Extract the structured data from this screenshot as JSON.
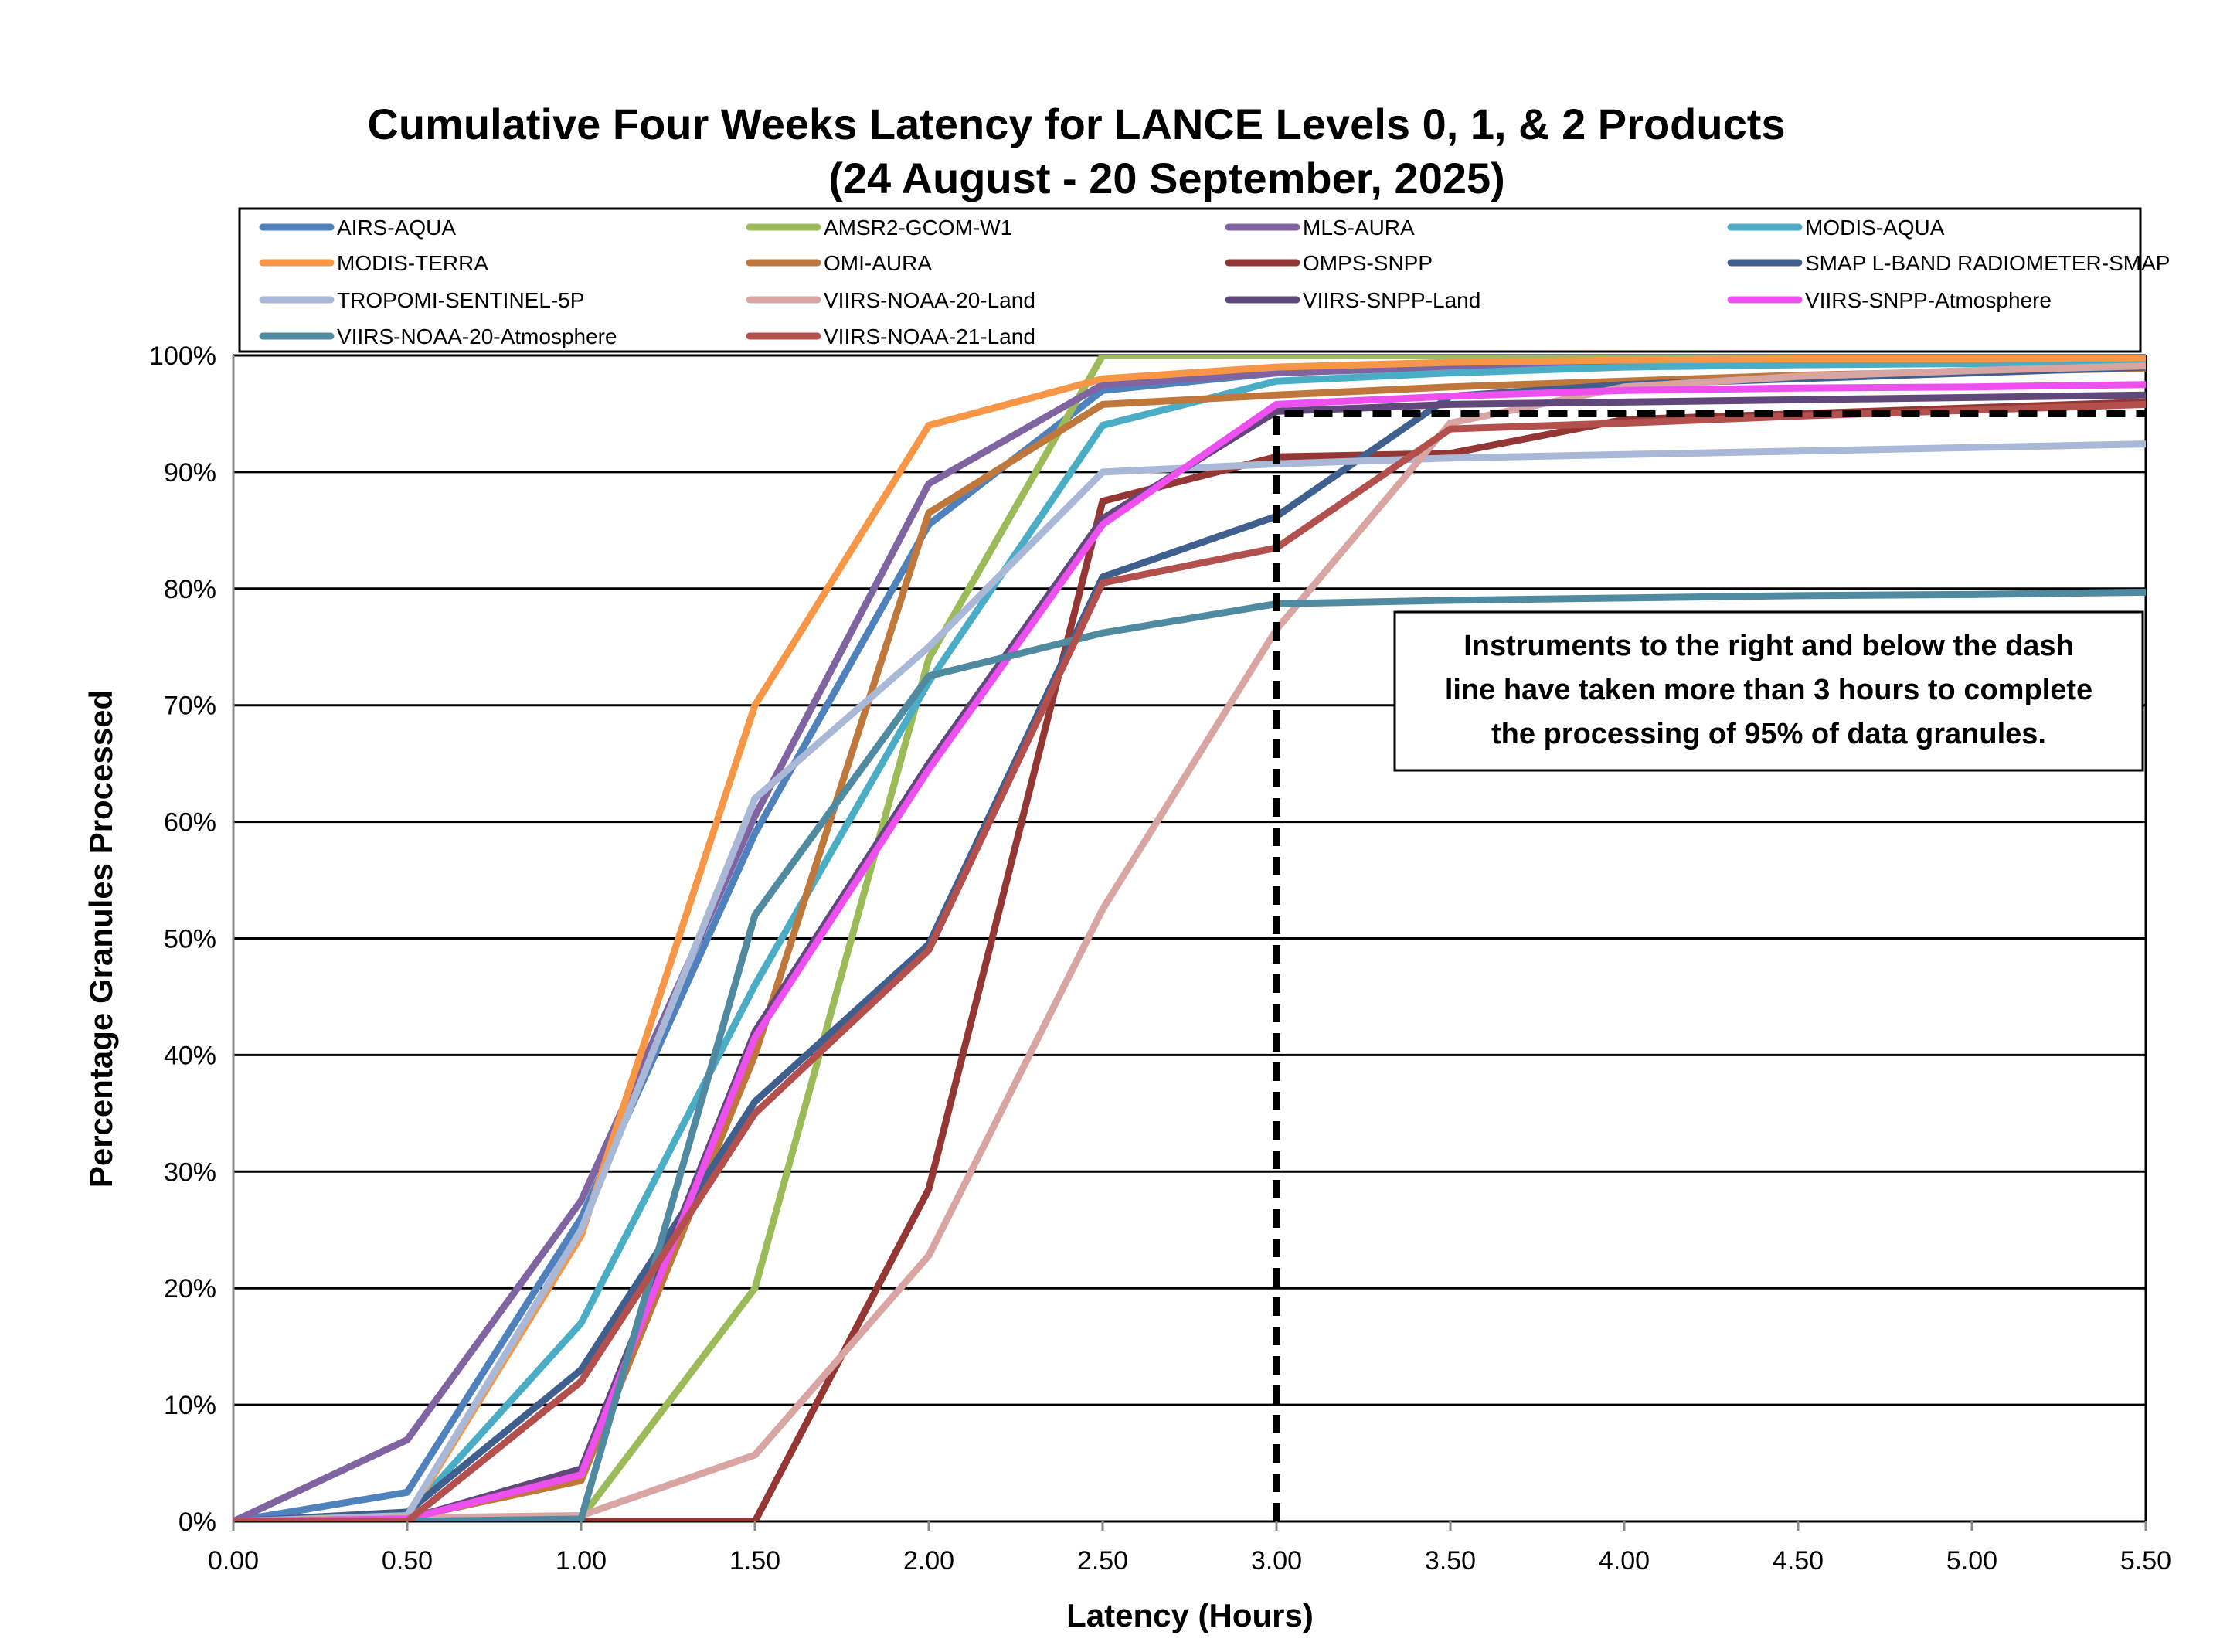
{
  "chart_data": {
    "type": "line",
    "title": "Cumulative Four Weeks Latency  for LANCE Levels 0, 1, & 2 Products",
    "subtitle": "(24  August   -  20  September,  2025)",
    "xlabel": "Latency (Hours)",
    "ylabel": "Percentage Granules Processed",
    "xlim": [
      0,
      5.5
    ],
    "ylim": [
      0,
      100
    ],
    "x_ticks": [
      "0.00",
      "0.50",
      "1.00",
      "1.50",
      "2.00",
      "2.50",
      "3.00",
      "3.50",
      "4.00",
      "4.50",
      "5.00",
      "5.50"
    ],
    "y_ticks": [
      "0%",
      "10%",
      "20%",
      "30%",
      "40%",
      "50%",
      "60%",
      "70%",
      "80%",
      "90%",
      "100%"
    ],
    "grid": "horizontal",
    "legend_position": "top",
    "x": [
      0,
      0.5,
      1.0,
      1.5,
      2.0,
      2.5,
      3.0,
      3.5,
      4.0,
      4.5,
      5.0,
      5.5
    ],
    "series": [
      {
        "name": "AIRS-AQUA",
        "color": "#4F81BD",
        "values": [
          0,
          2.5,
          26,
          59,
          85.5,
          97,
          98.5,
          99.2,
          99.5,
          99.6,
          99.7,
          99.8
        ]
      },
      {
        "name": "AMSR2-GCOM-W1",
        "color": "#9BBB59",
        "values": [
          0,
          0,
          0.3,
          20,
          74,
          100,
          100,
          100,
          100,
          100,
          100,
          100
        ]
      },
      {
        "name": "MLS-AURA",
        "color": "#8064A2",
        "values": [
          0,
          7,
          27.5,
          60.5,
          89,
          97.5,
          98.5,
          99,
          99.2,
          99.4,
          99.5,
          99.6
        ]
      },
      {
        "name": "MODIS-AQUA",
        "color": "#4BACC6",
        "values": [
          0,
          0.5,
          17,
          46,
          72,
          94,
          97.8,
          98.5,
          99,
          99.2,
          99.3,
          99.4
        ]
      },
      {
        "name": "MODIS-TERRA",
        "color": "#F79646",
        "values": [
          0,
          0.3,
          24.5,
          70,
          94,
          98,
          99,
          99.4,
          99.6,
          99.7,
          99.7,
          99.8
        ]
      },
      {
        "name": "OMI-AURA",
        "color": "#C0773C",
        "values": [
          0,
          0.3,
          3.5,
          40,
          86.5,
          95.8,
          96.6,
          97.3,
          97.8,
          98.3,
          98.6,
          98.9
        ]
      },
      {
        "name": "OMPS-SNPP",
        "color": "#943634",
        "values": [
          0,
          0,
          0,
          0,
          28.5,
          87.5,
          91.3,
          91.6,
          94.5,
          95,
          95.5,
          96
        ]
      },
      {
        "name": "SMAP L-BAND RADIOMETER-SMAP",
        "color": "#3F5F8F",
        "values": [
          0,
          0.8,
          13,
          36,
          49.5,
          81,
          86.2,
          96.5,
          97.5,
          98,
          98.5,
          99
        ]
      },
      {
        "name": "TROPOMI-SENTINEL-5P",
        "color": "#A9B8D6",
        "values": [
          0,
          0.5,
          25,
          62,
          75,
          90,
          90.7,
          91.2,
          91.5,
          91.8,
          92.1,
          92.4
        ]
      },
      {
        "name": "VIIRS-NOAA-20-Land",
        "color": "#D8A5A3",
        "values": [
          0,
          0.3,
          0.5,
          5.7,
          22.8,
          52.5,
          76.5,
          94.2,
          97.3,
          98.2,
          98.7,
          99.1
        ]
      },
      {
        "name": "VIIRS-SNPP-Land",
        "color": "#60497A",
        "values": [
          0,
          0.2,
          4.5,
          42,
          65,
          86,
          95.2,
          95.8,
          96,
          96.2,
          96.4,
          96.6
        ]
      },
      {
        "name": "VIIRS-SNPP-Atmosphere",
        "color": "#EE4FEF",
        "values": [
          0,
          0.2,
          4,
          41.5,
          64.5,
          85.5,
          95.8,
          96.5,
          97,
          97.2,
          97.3,
          97.5
        ]
      },
      {
        "name": "VIIRS-NOAA-20-Atmosphere",
        "color": "#4F8AA0",
        "values": [
          0,
          0,
          0.2,
          52,
          72.5,
          76.2,
          78.7,
          79,
          79.2,
          79.4,
          79.5,
          79.7
        ]
      },
      {
        "name": "VIIRS-NOAA-21-Land",
        "color": "#B3504E",
        "values": [
          0,
          0,
          12,
          35,
          49,
          80.5,
          83.5,
          93.7,
          94.2,
          94.8,
          95.3,
          95.8
        ]
      }
    ],
    "annotations": {
      "threshold_line": {
        "x": 3.0,
        "y": 95,
        "style": "dashed"
      },
      "text_box": [
        "Instruments to the right and below the dash",
        "line have taken more than 3 hours to complete",
        "the processing of 95% of data granules."
      ]
    }
  }
}
